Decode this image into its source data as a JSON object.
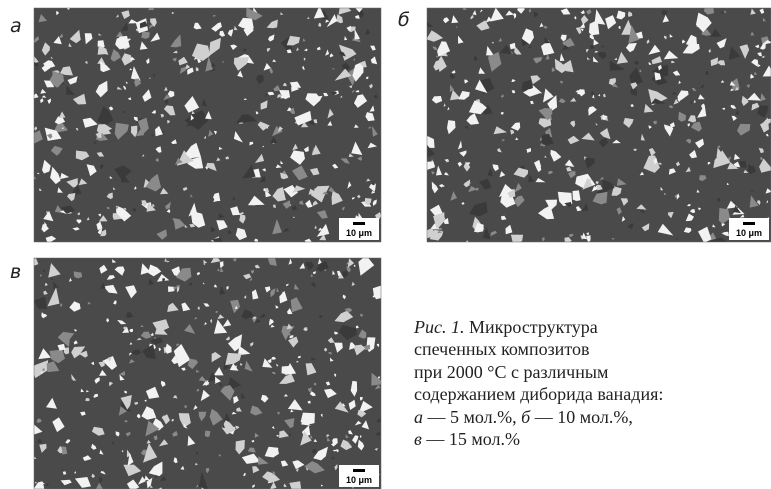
{
  "panels": [
    {
      "label": "а",
      "scale_bar": "10 μm"
    },
    {
      "label": "б",
      "scale_bar": "10 μm"
    },
    {
      "label": "в",
      "scale_bar": "10 μm"
    }
  ],
  "caption": {
    "label": "Рис. 1.",
    "lines": [
      [
        {
          "text": " Микроструктура",
          "italic": false
        }
      ],
      [
        {
          "text": "спеченных композитов",
          "italic": false
        }
      ],
      [
        {
          "text": "при 2000 °С с различным",
          "italic": false
        }
      ],
      [
        {
          "text": "содержанием диборида ванадия:",
          "italic": false
        }
      ],
      [
        {
          "text": "а",
          "italic": true
        },
        {
          "text": " — 5 мол.%, ",
          "italic": false
        },
        {
          "text": "б",
          "italic": true
        },
        {
          "text": " — 10 мол.%,",
          "italic": false
        }
      ],
      [
        {
          "text": "в",
          "italic": true
        },
        {
          "text": " — 15 мол.%",
          "italic": false
        }
      ]
    ]
  }
}
